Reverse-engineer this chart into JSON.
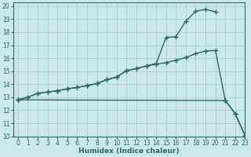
{
  "background_color": "#cce8e8",
  "grid_color": "#b0d4d4",
  "line_color": "#2a6b60",
  "xlabel": "Humidex (Indice chaleur)",
  "xlim": [
    -0.5,
    23
  ],
  "ylim": [
    10,
    20.3
  ],
  "xticks": [
    0,
    1,
    2,
    3,
    4,
    5,
    6,
    7,
    8,
    9,
    10,
    11,
    12,
    13,
    14,
    15,
    16,
    17,
    18,
    19,
    20,
    21,
    22,
    23
  ],
  "yticks": [
    10,
    11,
    12,
    13,
    14,
    15,
    16,
    17,
    18,
    19,
    20
  ],
  "line1_x": [
    0,
    1,
    2,
    3,
    4,
    5,
    6,
    7,
    8,
    9,
    10,
    11,
    12,
    13,
    14,
    15,
    16,
    17,
    18,
    19,
    20
  ],
  "line1_y": [
    12.8,
    13.0,
    13.3,
    13.4,
    13.5,
    13.65,
    13.75,
    13.9,
    14.05,
    14.35,
    14.55,
    15.05,
    15.2,
    15.4,
    15.6,
    17.6,
    17.65,
    18.85,
    19.6,
    19.75,
    19.55
  ],
  "line2_x": [
    0,
    1,
    2,
    3,
    4,
    5,
    6,
    7,
    8,
    9,
    10,
    11,
    12,
    13,
    14,
    15,
    16,
    17,
    18,
    19,
    20,
    21,
    22,
    23
  ],
  "line2_y": [
    12.8,
    13.0,
    13.3,
    13.4,
    13.5,
    13.65,
    13.75,
    13.9,
    14.05,
    14.35,
    14.55,
    15.05,
    15.2,
    15.4,
    15.55,
    15.65,
    15.85,
    16.05,
    16.35,
    16.55,
    16.6,
    12.75,
    11.75,
    10.05
  ],
  "line3_x": [
    0,
    21,
    22,
    23
  ],
  "line3_y": [
    12.8,
    12.75,
    11.75,
    10.05
  ]
}
